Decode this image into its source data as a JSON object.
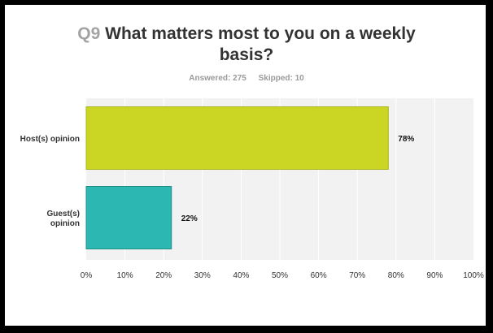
{
  "question": {
    "number": "Q9",
    "title_line1": "What matters most to you on a weekly",
    "title_line2": "basis?",
    "answered": "Answered: 275",
    "skipped": "Skipped: 10"
  },
  "colors": {
    "plot_bg": "#f2f2f2",
    "grid": "#ffffff",
    "bar_host": "#cbd624",
    "bar_guest": "#2db7b3"
  },
  "chart_data": {
    "type": "bar",
    "orientation": "horizontal",
    "categories": [
      "Host(s) opinion",
      "Guest(s) opinion"
    ],
    "values": [
      78,
      22
    ],
    "value_labels": [
      "78%",
      "22%"
    ],
    "xlim": [
      0,
      100
    ],
    "xticks": [
      "0%",
      "10%",
      "20%",
      "30%",
      "40%",
      "50%",
      "60%",
      "70%",
      "80%",
      "90%",
      "100%"
    ],
    "grid": true,
    "legend": false
  }
}
